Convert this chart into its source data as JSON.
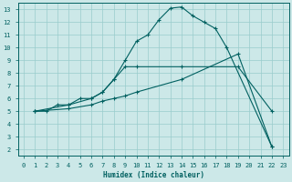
{
  "xlabel": "Humidex (Indice chaleur)",
  "bg_color": "#cce8e8",
  "line_color": "#006060",
  "grid_color": "#99cccc",
  "xlim": [
    -0.5,
    23.5
  ],
  "ylim": [
    1.5,
    13.5
  ],
  "xticks": [
    0,
    1,
    2,
    3,
    4,
    5,
    6,
    7,
    8,
    9,
    10,
    11,
    12,
    13,
    14,
    15,
    16,
    17,
    18,
    19,
    20,
    21,
    22,
    23
  ],
  "yticks": [
    2,
    3,
    4,
    5,
    6,
    7,
    8,
    9,
    10,
    11,
    12,
    13
  ],
  "line1_x": [
    1,
    2,
    3,
    4,
    5,
    6,
    7,
    8,
    9,
    10,
    11,
    12,
    13,
    14,
    15,
    16,
    17,
    18,
    22
  ],
  "line1_y": [
    5,
    5,
    5.5,
    5.5,
    6,
    6,
    6.5,
    7.5,
    9,
    10.5,
    11,
    12.2,
    13.1,
    13.2,
    12.5,
    12.0,
    11.5,
    10.0,
    2.2
  ],
  "line2_x": [
    1,
    4,
    6,
    7,
    8,
    9,
    10,
    14,
    19,
    22
  ],
  "line2_y": [
    5,
    5.5,
    6.0,
    6.5,
    7.5,
    8.5,
    8.5,
    8.5,
    8.5,
    5.0
  ],
  "line3_x": [
    1,
    4,
    6,
    7,
    8,
    9,
    10,
    14,
    19,
    22
  ],
  "line3_y": [
    5,
    5.2,
    5.5,
    5.8,
    6.0,
    6.2,
    6.5,
    7.5,
    9.5,
    2.2
  ]
}
